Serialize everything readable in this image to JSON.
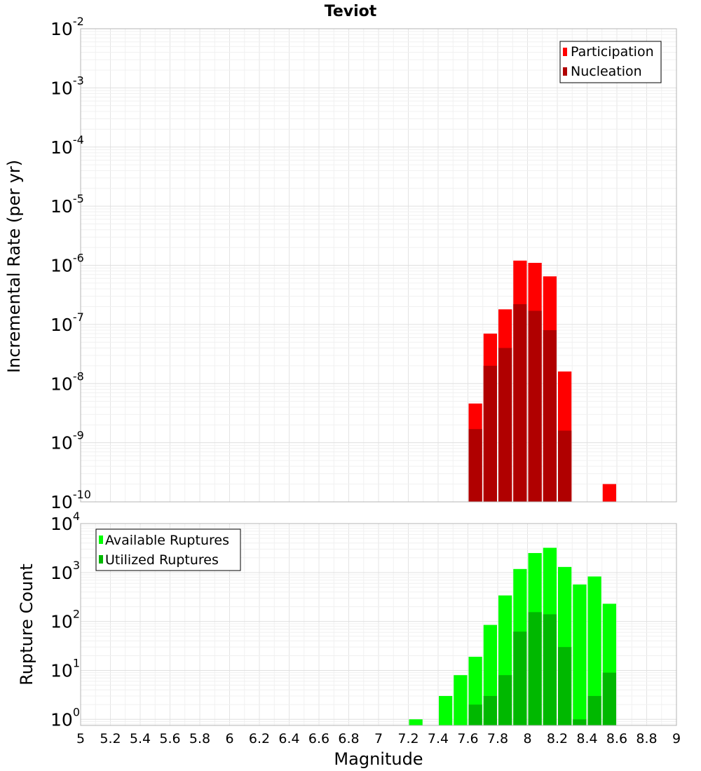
{
  "chart_data": [
    {
      "type": "bar",
      "title": "Teviot",
      "ylabel": "Incremental Rate (per yr)",
      "xlabel": "",
      "xlim": [
        5,
        9
      ],
      "ylim": [
        1e-10,
        0.01
      ],
      "yscale": "log",
      "bin_width": 0.1,
      "grid": true,
      "legend_position": "top-right",
      "ytick_exponents": [
        -2,
        -3,
        -4,
        -5,
        -6,
        -7,
        -8,
        -9,
        -10
      ],
      "series": [
        {
          "name": "Participation",
          "color": "#ff0000",
          "x": [
            7.65,
            7.75,
            7.85,
            7.95,
            8.05,
            8.15,
            8.25,
            8.55
          ],
          "values": [
            4.6e-09,
            7e-08,
            1.8e-07,
            1.2e-06,
            1.1e-06,
            6.5e-07,
            1.6e-08,
            2e-10
          ]
        },
        {
          "name": "Nucleation",
          "color": "#b00000",
          "x": [
            7.65,
            7.75,
            7.85,
            7.95,
            8.05,
            8.15,
            8.25
          ],
          "values": [
            1.7e-09,
            2e-08,
            4e-08,
            2.2e-07,
            1.7e-07,
            8e-08,
            1.6e-09
          ]
        }
      ]
    },
    {
      "type": "bar",
      "title": "",
      "ylabel": "Rupture Count",
      "xlabel": "Magnitude",
      "xlim": [
        5,
        9
      ],
      "ylim": [
        0.75,
        10000
      ],
      "yscale": "log",
      "bin_width": 0.1,
      "grid": true,
      "legend_position": "top-left",
      "xticks": [
        "5",
        "5.2",
        "5.4",
        "5.6",
        "5.8",
        "6",
        "6.2",
        "6.4",
        "6.6",
        "6.8",
        "7",
        "7.2",
        "7.4",
        "7.6",
        "7.8",
        "8",
        "8.2",
        "8.4",
        "8.6",
        "8.8",
        "9"
      ],
      "ytick_exponents": [
        4,
        3,
        2,
        1,
        0
      ],
      "series": [
        {
          "name": "Available Ruptures",
          "color": "#00ff00",
          "x": [
            7.25,
            7.45,
            7.55,
            7.65,
            7.75,
            7.85,
            7.95,
            8.05,
            8.15,
            8.25,
            8.35,
            8.45,
            8.55
          ],
          "values": [
            1,
            3,
            8,
            19,
            85,
            340,
            1180,
            2500,
            3200,
            1300,
            570,
            830,
            230
          ]
        },
        {
          "name": "Utilized Ruptures",
          "color": "#00b800",
          "x": [
            7.65,
            7.75,
            7.85,
            7.95,
            8.05,
            8.15,
            8.25,
            8.35,
            8.45,
            8.55
          ],
          "values": [
            2,
            3,
            8,
            62,
            155,
            140,
            30,
            1,
            3,
            9
          ]
        }
      ]
    }
  ]
}
